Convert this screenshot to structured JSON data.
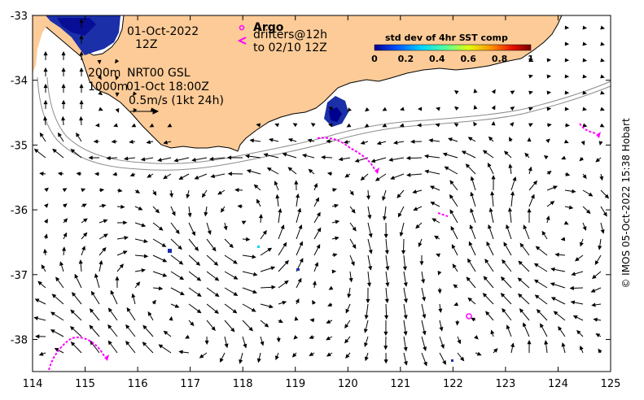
{
  "map": {
    "date_text": "01-Oct-2022",
    "time_text": "12Z",
    "depth_line1": "200m",
    "depth_line2": "1000m",
    "model_text": "NRT00 GSL",
    "model_time_text": "01-Oct 18:00Z",
    "scale_text": "0.5m/s (1kt 24h)",
    "argo_label": "Argo",
    "drifters_label": "drifters@12h",
    "drifters_to_label": "to 02/10 12Z",
    "colorbar_title": "std dev of 4hr SST comp",
    "colorbar_ticks": [
      "0",
      "0.2",
      "0.4",
      "0.6",
      "0.8",
      "1"
    ],
    "x_ticks": [
      "114",
      "115",
      "116",
      "117",
      "118",
      "119",
      "120",
      "121",
      "122",
      "123",
      "124",
      "125"
    ],
    "y_ticks": [
      "-33",
      "-34",
      "-35",
      "-36",
      "-37",
      "-38"
    ],
    "credit": "© IMOS 05-Oct-2022 15:38 Hobart",
    "colors": {
      "land": "#fdcb97",
      "drifter": "#ff00ff",
      "argo": "#ff00ff",
      "sst_high": "#1b2fa8",
      "sst_low": "#00008f"
    },
    "colormap": [
      "#00008f",
      "#0050ff",
      "#00d4ff",
      "#50ff9f",
      "#e0ff10",
      "#ff9000",
      "#e81000",
      "#7a0000"
    ]
  }
}
